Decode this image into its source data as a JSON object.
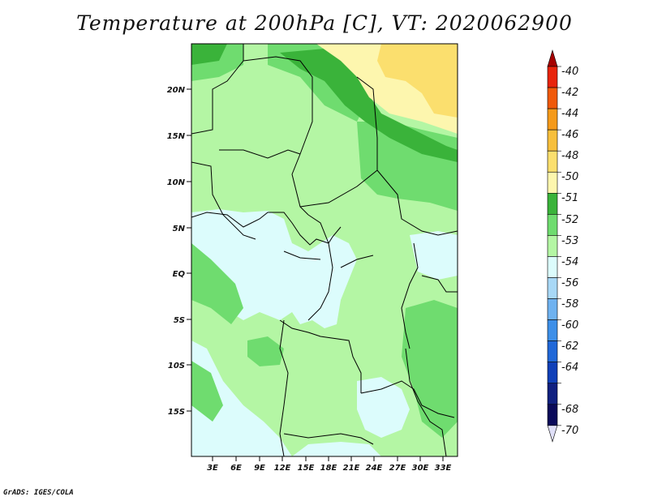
{
  "title": "Temperature at 200hPa [C], VT: 2020062900",
  "credit": "GrADS: IGES/COLA",
  "map": {
    "lat_labels": [
      "20N",
      "15N",
      "10N",
      "5N",
      "EQ",
      "5S",
      "10S",
      "15S"
    ],
    "lon_labels": [
      "3E",
      "6E",
      "9E",
      "12E",
      "15E",
      "18E",
      "21E",
      "24E",
      "27E",
      "30E",
      "33E"
    ]
  },
  "colorbar": {
    "levels": [
      "-40",
      "-42",
      "-44",
      "-46",
      "-48",
      "-50",
      "-51",
      "-52",
      "-53",
      "-54",
      "-56",
      "-58",
      "-60",
      "-62",
      "-64",
      "-68",
      "-70"
    ],
    "colors": [
      "#a50000",
      "#e8240c",
      "#f05a0a",
      "#f59a1a",
      "#f7bf3c",
      "#fbdf6e",
      "#fdf6ae",
      "#3ab33a",
      "#6fdc6f",
      "#b4f6a4",
      "#dcfcfc",
      "#a8d8f6",
      "#6fb2f0",
      "#3d8fe8",
      "#2068d8",
      "#1040b8",
      "#102080",
      "#0a0a5a",
      "#e0e0f8"
    ]
  }
}
